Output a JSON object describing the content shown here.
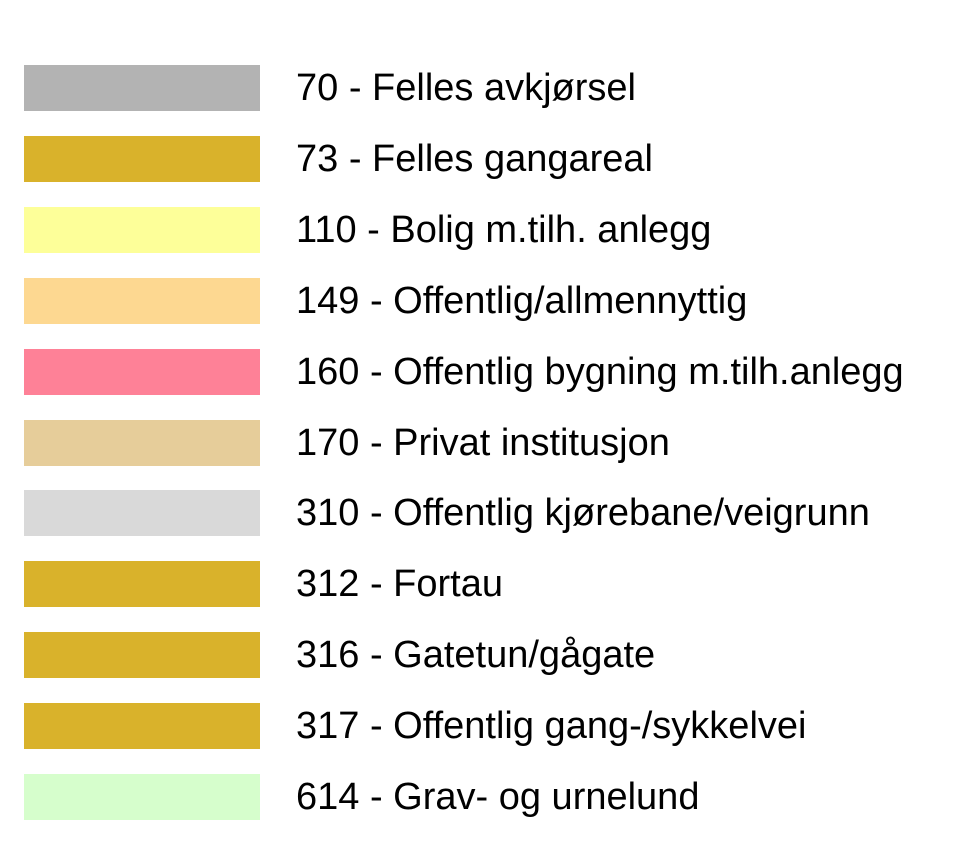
{
  "legend": {
    "items": [
      {
        "label": "70 - Felles avkjørsel",
        "color": "#b3b3b3"
      },
      {
        "label": "73 - Felles gangareal",
        "color": "#d9b22b"
      },
      {
        "label": "110 - Bolig m.tilh. anlegg",
        "color": "#fdff99"
      },
      {
        "label": "149 - Offentlig/allmennyttig",
        "color": "#fdd891"
      },
      {
        "label": "160 - Offentlig bygning m.tilh.anlegg",
        "color": "#fe8197"
      },
      {
        "label": "170 - Privat institusjon",
        "color": "#e6cd9a"
      },
      {
        "label": "310 - Offentlig kjørebane/veigrunn",
        "color": "#d9d9d9"
      },
      {
        "label": "312 - Fortau",
        "color": "#d9b22b"
      },
      {
        "label": "316 - Gatetun/gågate",
        "color": "#d9b22b"
      },
      {
        "label": "317 - Offentlig gang-/sykkelvei",
        "color": "#d9b22b"
      },
      {
        "label": "614 - Grav- og urnelund",
        "color": "#d6fecc"
      }
    ]
  }
}
